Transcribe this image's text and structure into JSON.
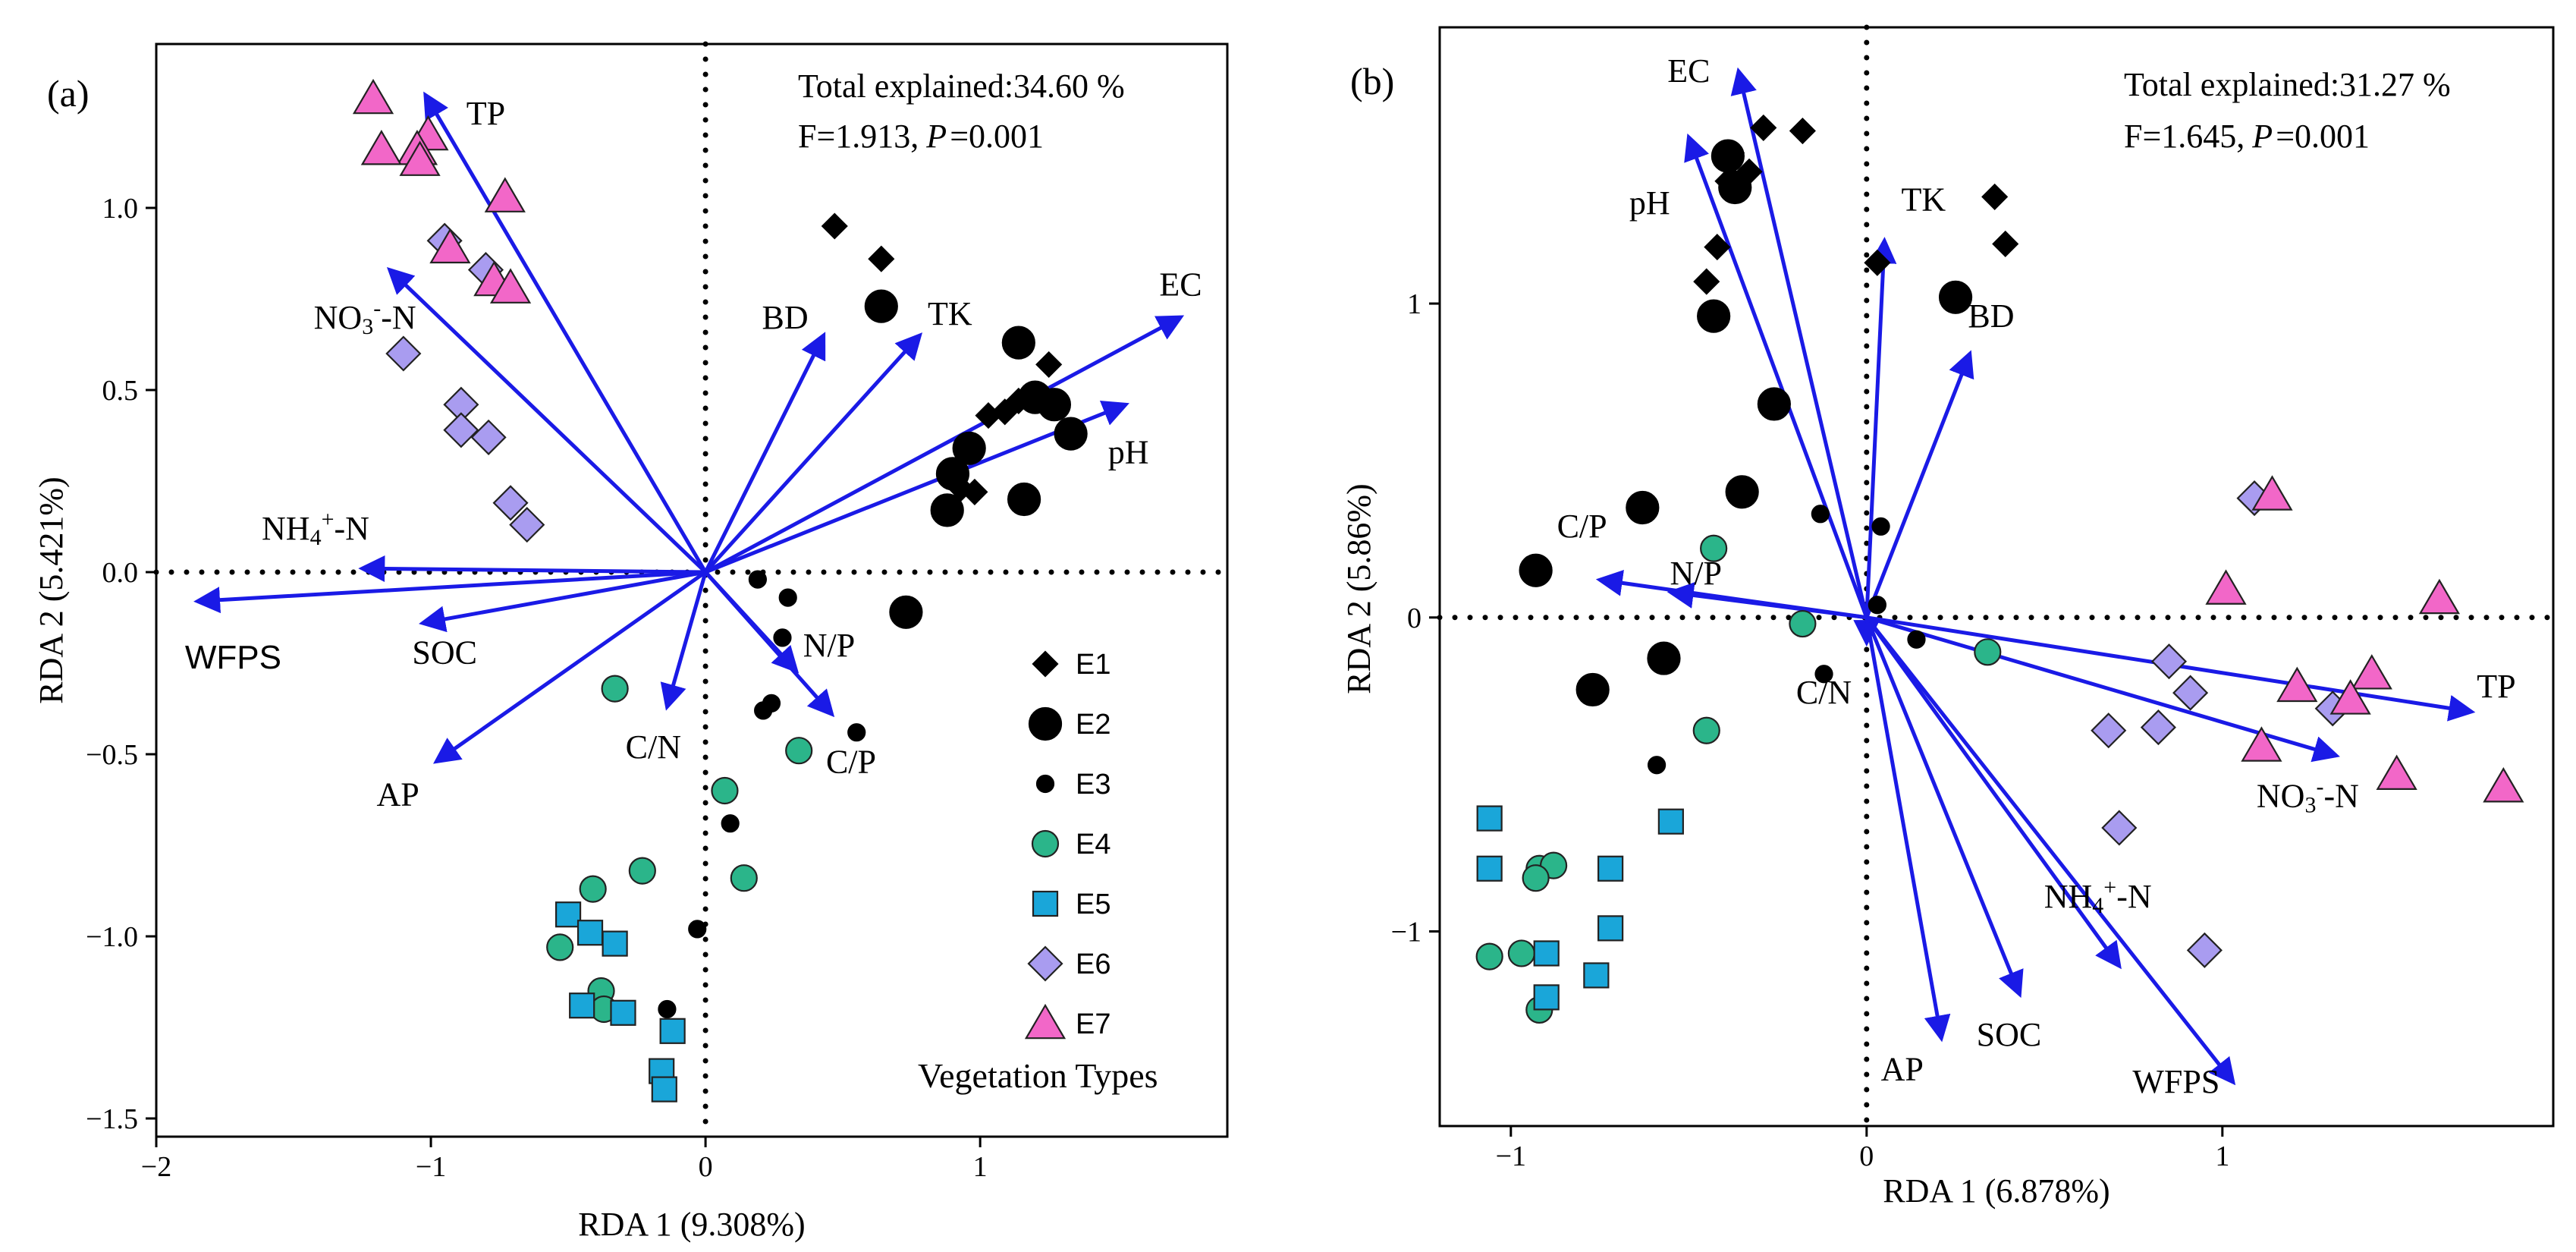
{
  "legend": {
    "title": "Vegetation Types",
    "entries": [
      {
        "label": "E1",
        "shape": "diamond",
        "color": "#000000",
        "size": "medium"
      },
      {
        "label": "E2",
        "shape": "circle",
        "color": "#000000",
        "size": "large"
      },
      {
        "label": "E3",
        "shape": "circle",
        "color": "#000000",
        "size": "small"
      },
      {
        "label": "E4",
        "shape": "circle",
        "color": "#2bb58a"
      },
      {
        "label": "E5",
        "shape": "square",
        "color": "#1aa6d9"
      },
      {
        "label": "E6",
        "shape": "diamond",
        "color": "#a99cf0"
      },
      {
        "label": "E7",
        "shape": "triangle",
        "color": "#f267c8"
      }
    ]
  },
  "chart_data": [
    {
      "type": "scatter",
      "panel_label": "(a)",
      "xlabel": "RDA 1 (9.308%)",
      "ylabel": "RDA 2 (5.421%)",
      "xlim": [
        -2.0,
        1.9
      ],
      "ylim": [
        -1.55,
        1.45
      ],
      "xticks": [
        -2,
        -1,
        0,
        1
      ],
      "yticks": [
        -1.5,
        -1.0,
        -0.5,
        0.0,
        0.5,
        1.0
      ],
      "xtick_labels": [
        "−2",
        "−1",
        "0",
        "1"
      ],
      "ytick_labels": [
        "−1.5",
        "−1.0",
        "−0.5",
        "0.0",
        "0.5",
        "1.0"
      ],
      "stats_line1": "Total explained:34.60 %",
      "stats_f": "F=1.913,",
      "stats_p": "P",
      "stats_pval": "=0.001",
      "arrows": [
        {
          "label": "TP",
          "sub": "",
          "sup": "",
          "suffix": "",
          "x": -1.02,
          "y": 1.31,
          "lx": -0.8,
          "ly": 1.25
        },
        {
          "label": "NO",
          "sub": "3",
          "sup": "-",
          "suffix": "-N",
          "x": -1.15,
          "y": 0.83,
          "lx": -1.24,
          "ly": 0.69
        },
        {
          "label": "NH",
          "sub": "4",
          "sup": "+",
          "suffix": "-N",
          "x": -1.25,
          "y": 0.01,
          "lx": -1.42,
          "ly": 0.11
        },
        {
          "label": "WFPS",
          "sub": "",
          "sup": "",
          "suffix": "",
          "x": -1.85,
          "y": -0.08,
          "lx": -1.72,
          "ly": -0.24,
          "sans": true
        },
        {
          "label": "SOC",
          "sub": "",
          "sup": "",
          "suffix": "",
          "x": -1.03,
          "y": -0.14,
          "lx": -0.95,
          "ly": -0.23
        },
        {
          "label": "AP",
          "sub": "",
          "sup": "",
          "suffix": "",
          "x": -0.98,
          "y": -0.52,
          "lx": -1.12,
          "ly": -0.62
        },
        {
          "label": "C/N",
          "sub": "",
          "sup": "",
          "suffix": "",
          "x": -0.14,
          "y": -0.37,
          "lx": -0.19,
          "ly": -0.49
        },
        {
          "label": "N/P",
          "sub": "",
          "sup": "",
          "suffix": "",
          "x": 0.33,
          "y": -0.27,
          "lx": 0.45,
          "ly": -0.21
        },
        {
          "label": "C/P",
          "sub": "",
          "sup": "",
          "suffix": "",
          "x": 0.46,
          "y": -0.39,
          "lx": 0.53,
          "ly": -0.53
        },
        {
          "label": "BD",
          "sub": "",
          "sup": "",
          "suffix": "",
          "x": 0.43,
          "y": 0.65,
          "lx": 0.29,
          "ly": 0.69
        },
        {
          "label": "TK",
          "sub": "",
          "sup": "",
          "suffix": "",
          "x": 0.78,
          "y": 0.65,
          "lx": 0.89,
          "ly": 0.7
        },
        {
          "label": "pH",
          "sub": "",
          "sup": "",
          "suffix": "",
          "x": 1.53,
          "y": 0.46,
          "lx": 1.54,
          "ly": 0.32
        },
        {
          "label": "EC",
          "sub": "",
          "sup": "",
          "suffix": "",
          "x": 1.73,
          "y": 0.7,
          "lx": 1.73,
          "ly": 0.78
        }
      ],
      "series": [
        {
          "name": "E1",
          "points": [
            [
              0.47,
              0.95
            ],
            [
              0.64,
              0.86
            ],
            [
              1.25,
              0.57
            ],
            [
              1.03,
              0.43
            ],
            [
              1.09,
              0.44
            ],
            [
              1.14,
              0.47
            ],
            [
              0.93,
              0.23
            ],
            [
              0.98,
              0.22
            ]
          ]
        },
        {
          "name": "E2",
          "points": [
            [
              0.64,
              0.73
            ],
            [
              1.14,
              0.63
            ],
            [
              1.2,
              0.48
            ],
            [
              1.27,
              0.46
            ],
            [
              1.33,
              0.38
            ],
            [
              0.96,
              0.34
            ],
            [
              0.9,
              0.27
            ],
            [
              0.88,
              0.17
            ],
            [
              1.16,
              0.2
            ],
            [
              0.73,
              -0.11
            ]
          ]
        },
        {
          "name": "E3",
          "points": [
            [
              0.19,
              -0.02
            ],
            [
              0.3,
              -0.07
            ],
            [
              0.28,
              -0.18
            ],
            [
              0.24,
              -0.36
            ],
            [
              0.21,
              -0.38
            ],
            [
              0.55,
              -0.44
            ],
            [
              0.09,
              -0.69
            ],
            [
              -0.03,
              -0.98
            ],
            [
              -0.14,
              -1.2
            ]
          ]
        },
        {
          "name": "E4",
          "points": [
            [
              -0.33,
              -0.32
            ],
            [
              0.34,
              -0.49
            ],
            [
              0.07,
              -0.6
            ],
            [
              0.14,
              -0.84
            ],
            [
              -0.23,
              -0.82
            ],
            [
              -0.41,
              -0.87
            ],
            [
              -0.53,
              -1.03
            ],
            [
              -0.38,
              -1.15
            ],
            [
              -0.37,
              -1.2
            ]
          ]
        },
        {
          "name": "E5",
          "points": [
            [
              -0.5,
              -0.94
            ],
            [
              -0.42,
              -0.99
            ],
            [
              -0.33,
              -1.02
            ],
            [
              -0.45,
              -1.19
            ],
            [
              -0.3,
              -1.21
            ],
            [
              -0.12,
              -1.26
            ],
            [
              -0.16,
              -1.37
            ],
            [
              -0.15,
              -1.42
            ]
          ]
        },
        {
          "name": "E6",
          "points": [
            [
              -0.95,
              0.91
            ],
            [
              -0.8,
              0.83
            ],
            [
              -1.1,
              0.6
            ],
            [
              -0.89,
              0.46
            ],
            [
              -0.89,
              0.39
            ],
            [
              -0.79,
              0.37
            ],
            [
              -0.71,
              0.19
            ],
            [
              -0.65,
              0.13
            ]
          ]
        },
        {
          "name": "E7",
          "points": [
            [
              -1.21,
              1.3
            ],
            [
              -1.01,
              1.2
            ],
            [
              -1.05,
              1.16
            ],
            [
              -1.18,
              1.16
            ],
            [
              -1.04,
              1.13
            ],
            [
              -0.73,
              1.03
            ],
            [
              -0.93,
              0.89
            ],
            [
              -0.77,
              0.8
            ],
            [
              -0.71,
              0.78
            ]
          ]
        }
      ]
    },
    {
      "type": "scatter",
      "panel_label": "(b)",
      "xlabel": "RDA 1 (6.878%)",
      "ylabel": "RDA 2 (5.86%)",
      "xlim": [
        -1.2,
        1.93
      ],
      "ylim": [
        -1.62,
        1.88
      ],
      "xticks": [
        -1,
        0,
        1
      ],
      "yticks": [
        -1,
        0,
        1
      ],
      "xtick_labels": [
        "−1",
        "0",
        "1"
      ],
      "ytick_labels": [
        "−1",
        "0",
        "1"
      ],
      "stats_line1": "Total explained:31.27 %",
      "stats_f": "F=1.645,",
      "stats_p": "P",
      "stats_pval": "=0.001",
      "arrows": [
        {
          "label": "EC",
          "sub": "",
          "sup": "",
          "suffix": "",
          "x": -0.36,
          "y": 1.74,
          "lx": -0.5,
          "ly": 1.73
        },
        {
          "label": "pH",
          "sub": "",
          "sup": "",
          "suffix": "",
          "x": -0.5,
          "y": 1.53,
          "lx": -0.61,
          "ly": 1.31
        },
        {
          "label": "TK",
          "sub": "",
          "sup": "",
          "suffix": "",
          "x": 0.05,
          "y": 1.2,
          "lx": 0.16,
          "ly": 1.32
        },
        {
          "label": "BD",
          "sub": "",
          "sup": "",
          "suffix": "",
          "x": 0.29,
          "y": 0.84,
          "lx": 0.35,
          "ly": 0.95
        },
        {
          "label": "C/P",
          "sub": "",
          "sup": "",
          "suffix": "",
          "x": -0.75,
          "y": 0.12,
          "lx": -0.8,
          "ly": 0.28
        },
        {
          "label": "N/P",
          "sub": "",
          "sup": "",
          "suffix": "",
          "x": -0.55,
          "y": 0.08,
          "lx": -0.48,
          "ly": 0.13
        },
        {
          "label": "C/N",
          "sub": "",
          "sup": "",
          "suffix": "",
          "x": 0.0,
          "y": -0.08,
          "lx": -0.12,
          "ly": -0.25
        },
        {
          "label": "TP",
          "sub": "",
          "sup": "",
          "suffix": "",
          "x": 1.7,
          "y": -0.3,
          "lx": 1.77,
          "ly": -0.23
        },
        {
          "label": "NO",
          "sub": "3",
          "sup": "-",
          "suffix": "-N",
          "x": 1.32,
          "y": -0.44,
          "lx": 1.24,
          "ly": -0.58
        },
        {
          "label": "NH",
          "sub": "4",
          "sup": "+",
          "suffix": "-N",
          "x": 0.71,
          "y": -1.11,
          "lx": 0.65,
          "ly": -0.9
        },
        {
          "label": "WFPS",
          "sub": "",
          "sup": "",
          "suffix": "",
          "x": 1.03,
          "y": -1.48,
          "lx": 0.87,
          "ly": -1.49
        },
        {
          "label": "SOC",
          "sub": "",
          "sup": "",
          "suffix": "",
          "x": 0.43,
          "y": -1.2,
          "lx": 0.4,
          "ly": -1.34
        },
        {
          "label": "AP",
          "sub": "",
          "sup": "",
          "suffix": "",
          "x": 0.21,
          "y": -1.34,
          "lx": 0.1,
          "ly": -1.45
        }
      ],
      "series": [
        {
          "name": "E1",
          "points": [
            [
              -0.29,
              1.56
            ],
            [
              -0.18,
              1.55
            ],
            [
              -0.38,
              1.48
            ],
            [
              -0.33,
              1.42
            ],
            [
              -0.39,
              1.39
            ],
            [
              -0.42,
              1.18
            ],
            [
              -0.45,
              1.07
            ],
            [
              0.36,
              1.34
            ],
            [
              0.39,
              1.19
            ],
            [
              0.03,
              1.13
            ]
          ]
        },
        {
          "name": "E2",
          "points": [
            [
              -0.39,
              1.47
            ],
            [
              -0.37,
              1.37
            ],
            [
              -0.43,
              0.96
            ],
            [
              0.25,
              1.02
            ],
            [
              -0.26,
              0.68
            ],
            [
              -0.63,
              0.35
            ],
            [
              -0.35,
              0.4
            ],
            [
              -0.93,
              0.15
            ],
            [
              -0.57,
              -0.13
            ],
            [
              -0.77,
              -0.23
            ]
          ]
        },
        {
          "name": "E3",
          "points": [
            [
              -0.13,
              0.33
            ],
            [
              0.04,
              0.29
            ],
            [
              0.03,
              0.04
            ],
            [
              0.14,
              -0.07
            ],
            [
              -0.12,
              -0.18
            ],
            [
              -0.44,
              -0.36
            ],
            [
              -0.59,
              -0.47
            ]
          ]
        },
        {
          "name": "E4",
          "points": [
            [
              -0.43,
              0.22
            ],
            [
              -0.18,
              -0.02
            ],
            [
              0.34,
              -0.11
            ],
            [
              -0.45,
              -0.36
            ],
            [
              -0.92,
              -0.8
            ],
            [
              -0.88,
              -0.79
            ],
            [
              -0.93,
              -0.83
            ],
            [
              -1.06,
              -1.08
            ],
            [
              -0.97,
              -1.07
            ],
            [
              -0.92,
              -1.25
            ]
          ]
        },
        {
          "name": "E5",
          "points": [
            [
              -1.06,
              -0.64
            ],
            [
              -1.06,
              -0.8
            ],
            [
              -0.72,
              -0.8
            ],
            [
              -0.55,
              -0.65
            ],
            [
              -0.72,
              -0.99
            ],
            [
              -0.9,
              -1.07
            ],
            [
              -0.9,
              -1.21
            ],
            [
              -0.76,
              -1.14
            ]
          ]
        },
        {
          "name": "E6",
          "points": [
            [
              1.09,
              0.38
            ],
            [
              0.85,
              -0.14
            ],
            [
              0.91,
              -0.24
            ],
            [
              0.68,
              -0.36
            ],
            [
              0.82,
              -0.35
            ],
            [
              1.31,
              -0.29
            ],
            [
              0.71,
              -0.67
            ],
            [
              0.95,
              -1.06
            ]
          ]
        },
        {
          "name": "E7",
          "points": [
            [
              1.14,
              0.39
            ],
            [
              1.01,
              0.09
            ],
            [
              1.61,
              0.06
            ],
            [
              1.21,
              -0.22
            ],
            [
              1.42,
              -0.18
            ],
            [
              1.36,
              -0.26
            ],
            [
              1.11,
              -0.41
            ],
            [
              1.49,
              -0.5
            ],
            [
              1.79,
              -0.54
            ]
          ]
        }
      ]
    }
  ]
}
